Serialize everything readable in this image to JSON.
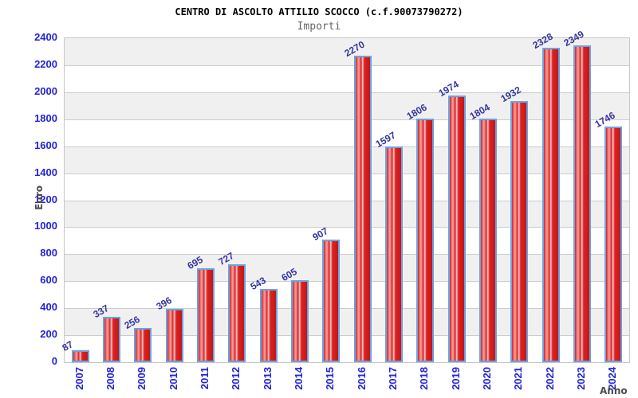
{
  "header": {
    "title": "CENTRO DI ASCOLTO ATTILIO SCOCCO (c.f.90073790272)",
    "subtitle": "Importi"
  },
  "chart_data": {
    "type": "bar",
    "title": "CENTRO DI ASCOLTO ATTILIO SCOCCO (c.f.90073790272)",
    "subtitle": "Importi",
    "xlabel": "Anno",
    "ylabel": "Euro",
    "categories": [
      "2007",
      "2008",
      "2009",
      "2010",
      "2011",
      "2012",
      "2013",
      "2014",
      "2015",
      "2016",
      "2017",
      "2018",
      "2019",
      "2020",
      "2021",
      "2022",
      "2023",
      "2024"
    ],
    "values": [
      87,
      337,
      256,
      396,
      695,
      727,
      543,
      605,
      907,
      2270,
      1597,
      1806,
      1974,
      1804,
      1932,
      2328,
      2349,
      1746
    ],
    "ylim": [
      0,
      2400
    ],
    "yticks": [
      0,
      200,
      400,
      600,
      800,
      1000,
      1200,
      1400,
      1600,
      1800,
      2000,
      2200,
      2400
    ],
    "grid": true,
    "legend": false,
    "value_labels_rotation_deg": -30,
    "colors": {
      "bar_fill_main": "#dc2323",
      "bar_fill_highlight": "#fbd0d0",
      "bar_border": "#6ba3e0",
      "tick_label": "#2323d7",
      "value_label": "#3434a0",
      "band": "#f0f0f0",
      "gridline": "#cccccc",
      "plot_border": "#c6c6c6",
      "title": "#000000",
      "subtitle": "#666666",
      "axis_label": "#4d4d4d",
      "background": "#ffffff"
    }
  }
}
